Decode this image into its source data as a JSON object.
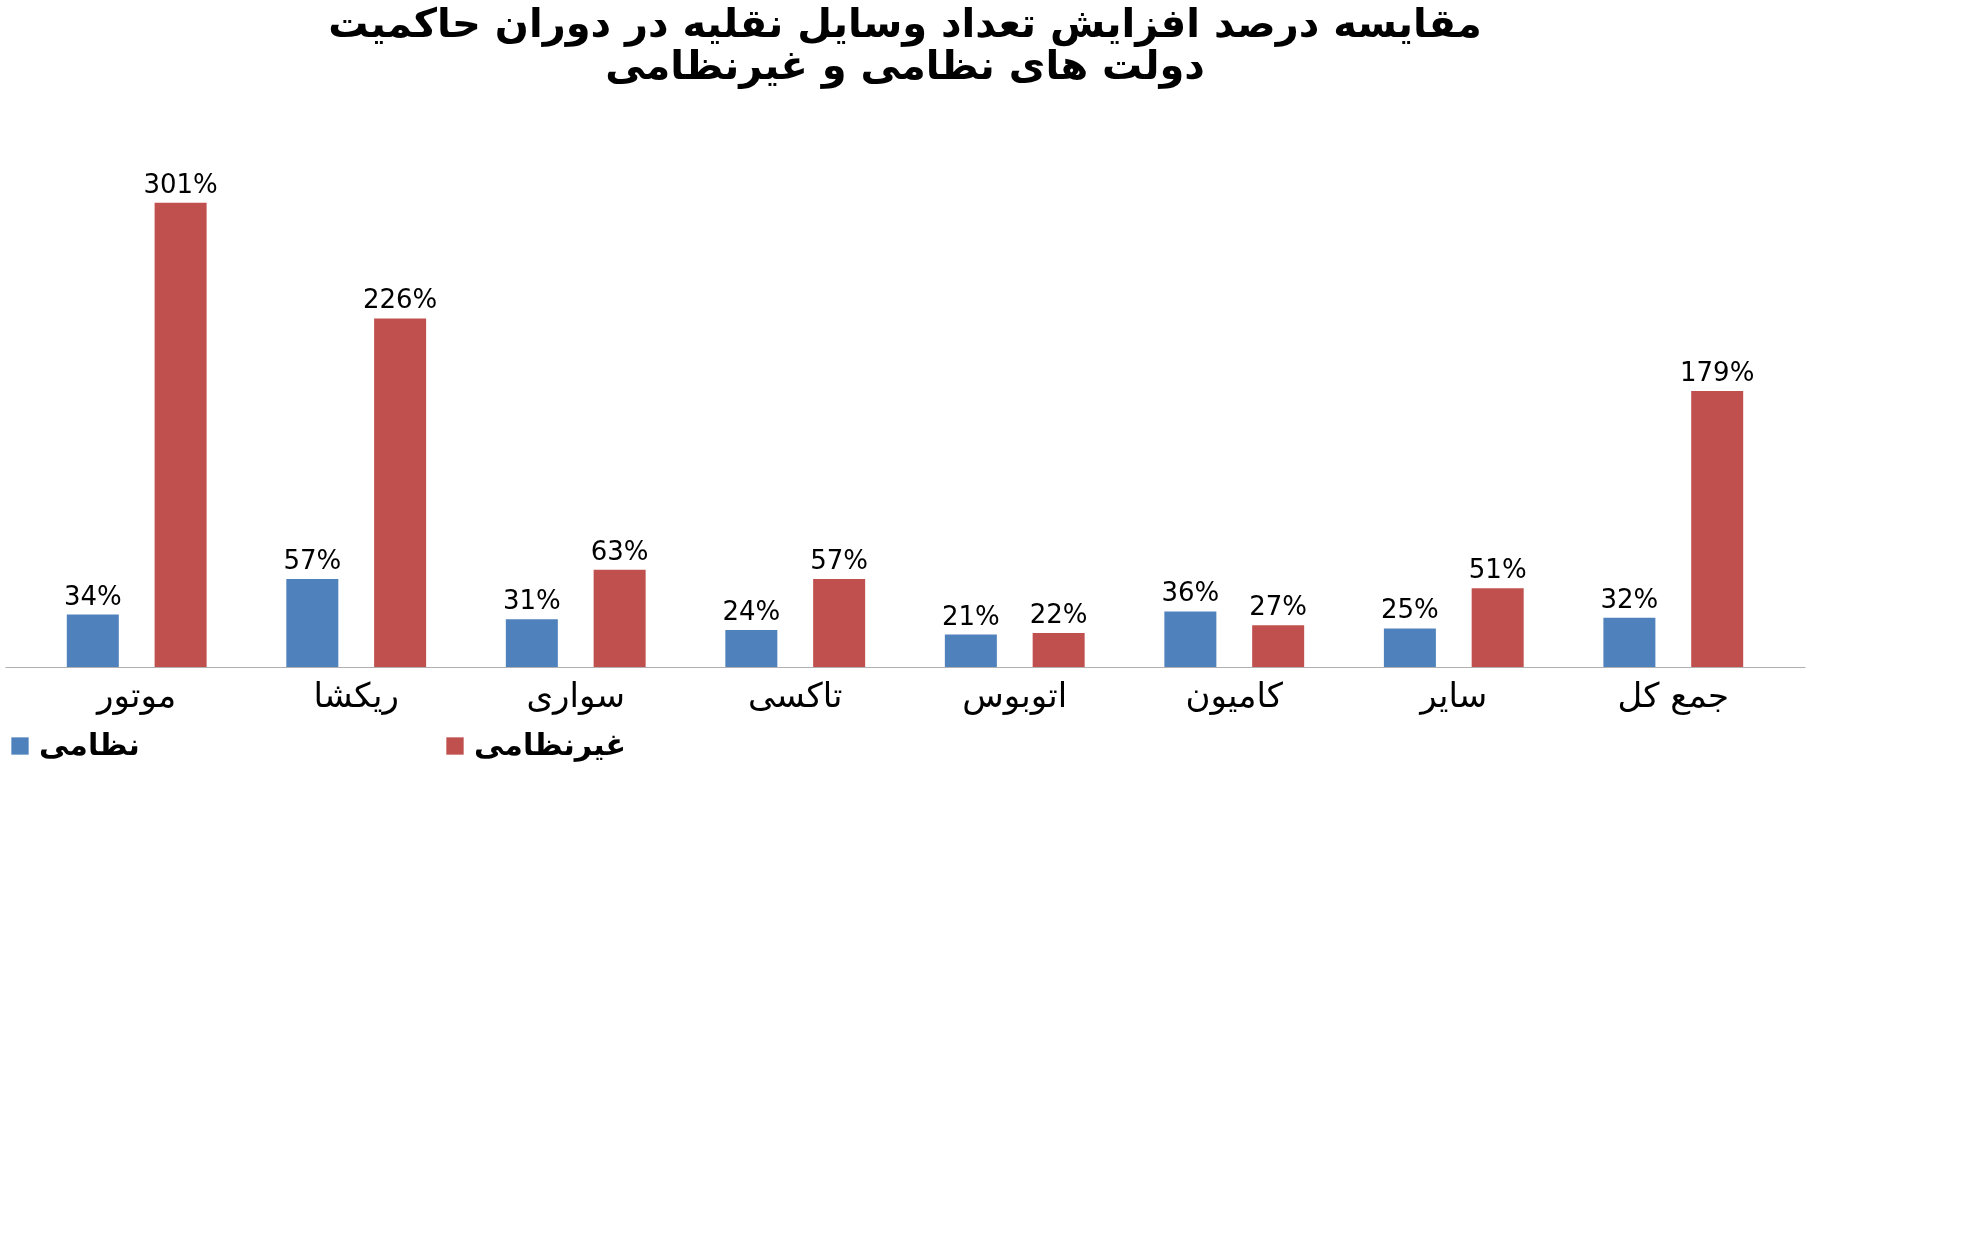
{
  "chart_data": {
    "type": "bar",
    "title": [
      "مقایسه درصد افزایش تعداد وسایل نقلیه در دوران حاکمیت",
      "دولت های نظامی و غیرنظامی"
    ],
    "categories": [
      "موتور",
      "ریکشا",
      "سواری",
      "تاکسی",
      "اتوبوس",
      "کامیون",
      "سایر",
      "جمع کل"
    ],
    "series": [
      {
        "name": "نظامی",
        "color": "#4f81bd",
        "values": [
          34,
          57,
          31,
          24,
          21,
          36,
          25,
          32
        ],
        "value_labels": [
          "34%",
          "57%",
          "31%",
          "24%",
          "21%",
          "36%",
          "25%",
          "32%"
        ]
      },
      {
        "name": "غیرنظامی",
        "color": "#c0504d",
        "values": [
          301,
          226,
          63,
          57,
          22,
          27,
          51,
          179
        ],
        "value_labels": [
          "301%",
          "226%",
          "63%",
          "57%",
          "22%",
          "27%",
          "51%",
          "179%"
        ]
      }
    ],
    "legend": "bottom",
    "grid": false
  }
}
